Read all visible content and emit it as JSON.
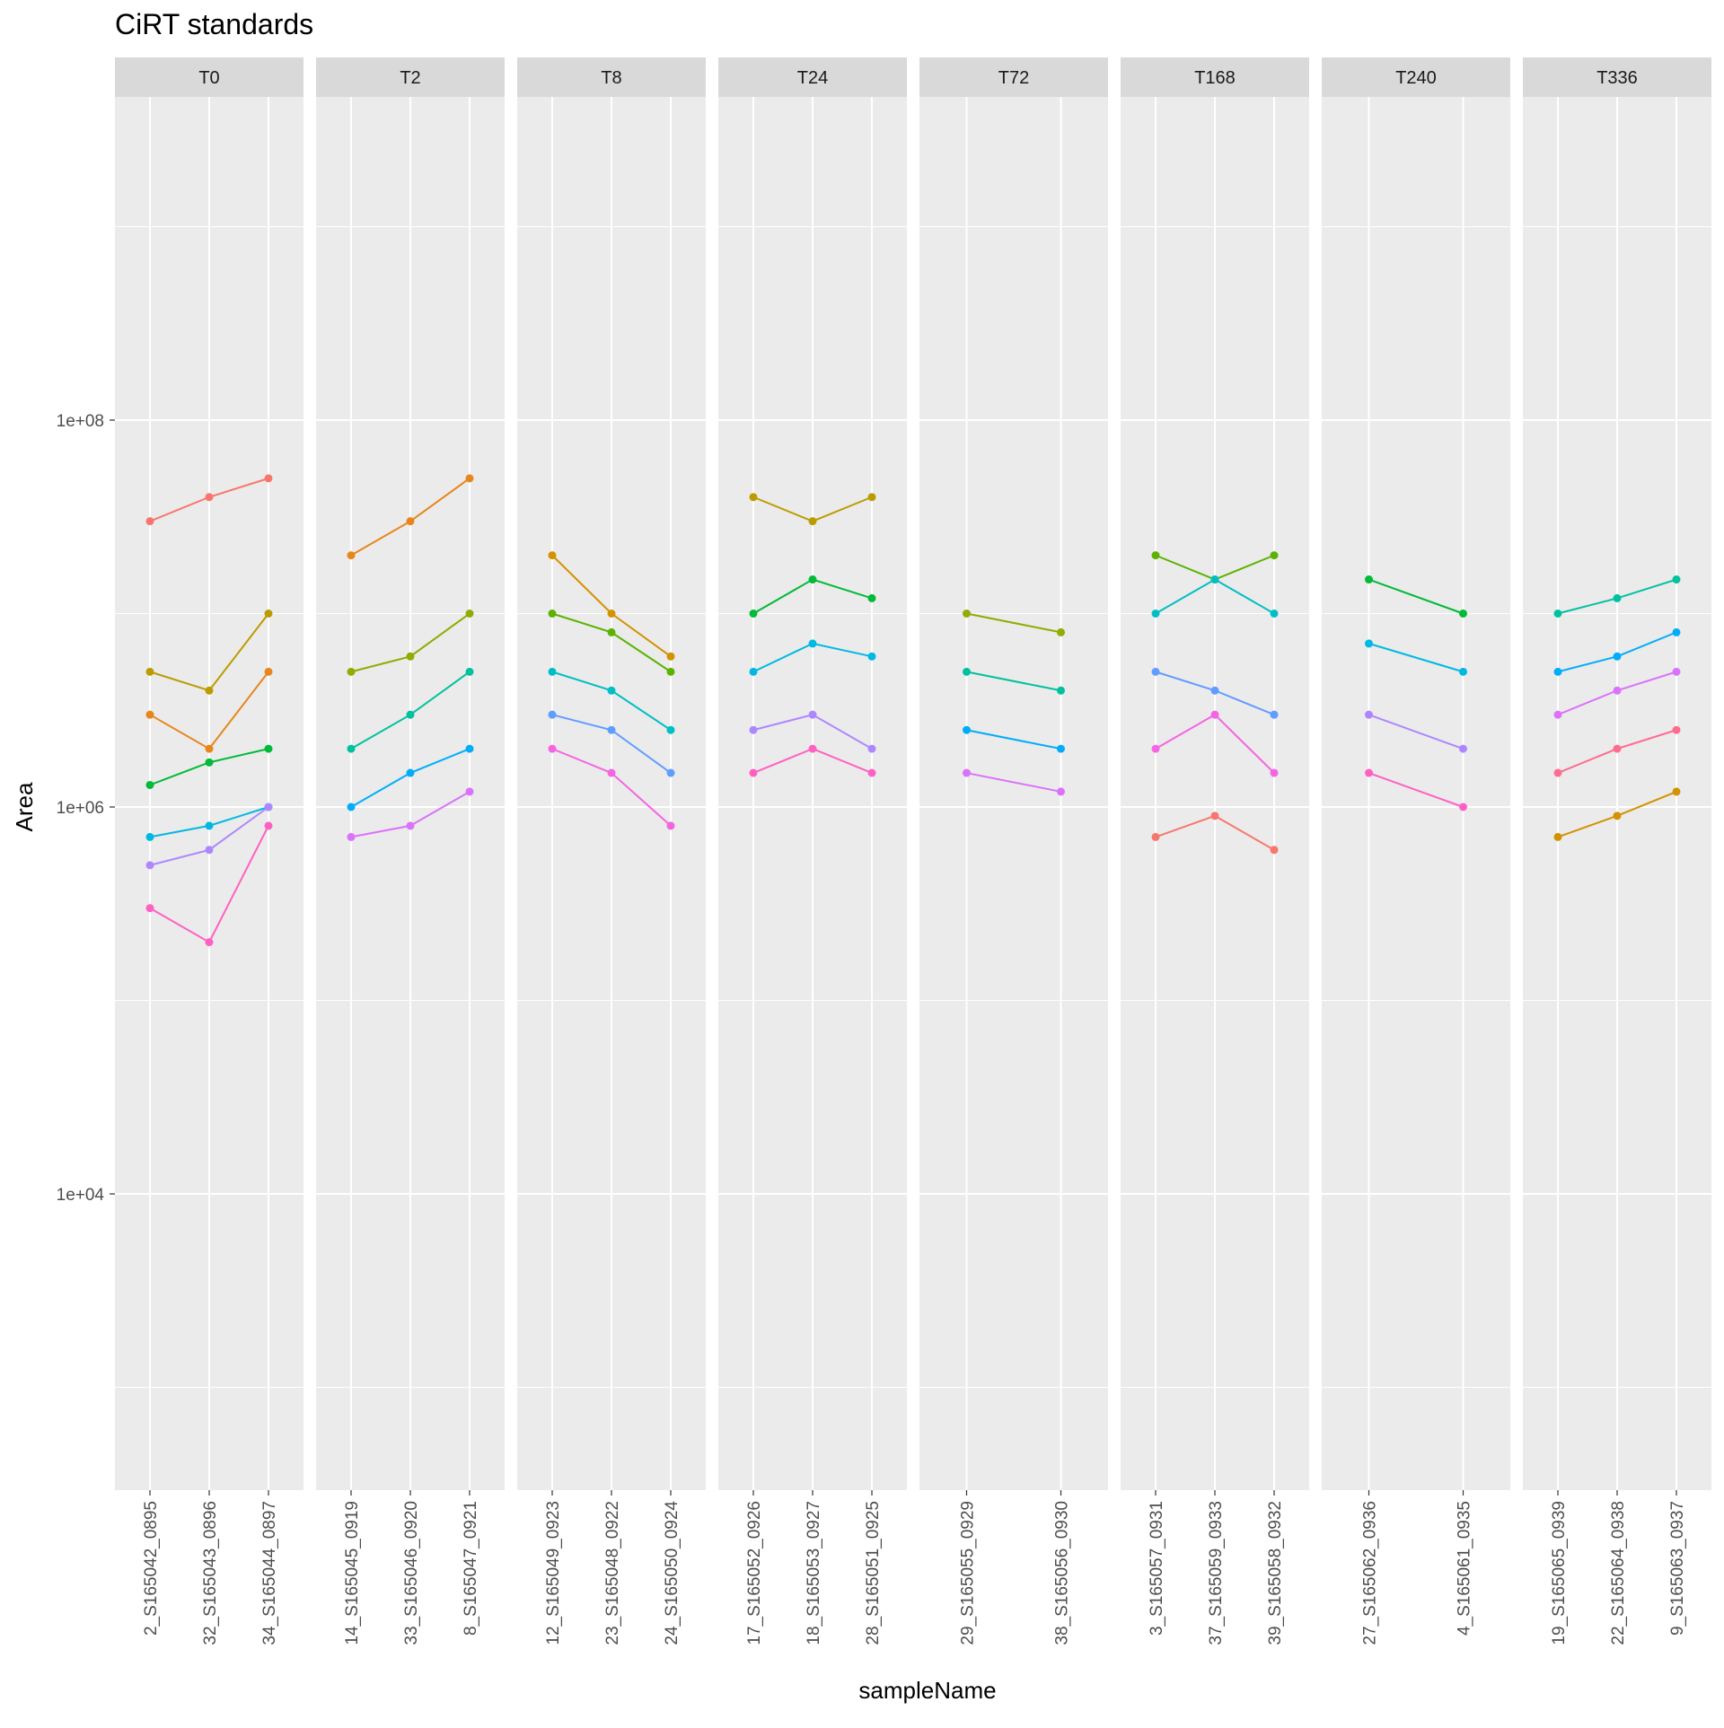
{
  "chart_data": {
    "type": "line",
    "title": "CiRT standards",
    "xlabel": "sampleName",
    "ylabel": "Area",
    "y_scale": "log10",
    "ylim": [
      400,
      30000000000
    ],
    "y_ticks": [
      {
        "value": 10000,
        "label": "1e+04"
      },
      {
        "value": 1000000,
        "label": "1e+06"
      },
      {
        "value": 100000000,
        "label": "1e+08"
      }
    ],
    "grid": true,
    "legend": "none",
    "colors": [
      "#F8766D",
      "#E7861A",
      "#D39200",
      "#BB9C00",
      "#93AA00",
      "#5BB300",
      "#00BA38",
      "#00C19F",
      "#00BFC4",
      "#00B9E3",
      "#00ADFA",
      "#619CFF",
      "#AE87FF",
      "#DB72FB",
      "#F564E3",
      "#FF61C3",
      "#FF6C91"
    ],
    "facets": [
      {
        "label": "T0",
        "samples": [
          "2_S165042_0895",
          "32_S165043_0896",
          "34_S165044_0897"
        ],
        "series": [
          {
            "values": [
              30000000,
              40000000,
              50000000
            ]
          },
          {
            "values": [
              5000000,
              4000000,
              10000000
            ]
          },
          {
            "values": [
              1300000,
              1700000,
              2000000
            ]
          },
          {
            "values": [
              700000,
              800000,
              1000000
            ]
          },
          {
            "values": [
              500000,
              600000,
              1000000
            ]
          },
          {
            "values": [
              300000,
              200000,
              800000
            ]
          },
          {
            "values": [
              3000000,
              2000000,
              5000000
            ]
          }
        ]
      },
      {
        "label": "T2",
        "samples": [
          "14_S165045_0919",
          "33_S165046_0920",
          "8_S165047_0921"
        ],
        "series": [
          {
            "values": [
              20000000,
              30000000,
              50000000
            ]
          },
          {
            "values": [
              5000000,
              6000000,
              10000000
            ]
          },
          {
            "values": [
              2000000,
              3000000,
              5000000
            ]
          },
          {
            "values": [
              1000000,
              1500000,
              2000000
            ]
          },
          {
            "values": [
              700000,
              800000,
              1200000
            ]
          }
        ]
      },
      {
        "label": "T8",
        "samples": [
          "12_S165049_0923",
          "23_S165048_0922",
          "24_S165050_0924"
        ],
        "series": [
          {
            "values": [
              20000000,
              10000000,
              6000000
            ]
          },
          {
            "values": [
              10000000,
              8000000,
              5000000
            ]
          },
          {
            "values": [
              5000000,
              4000000,
              2500000
            ]
          },
          {
            "values": [
              3000000,
              2500000,
              1500000
            ]
          },
          {
            "values": [
              2000000,
              1500000,
              800000
            ]
          }
        ]
      },
      {
        "label": "T24",
        "samples": [
          "17_S165052_0926",
          "18_S165053_0927",
          "28_S165051_0925"
        ],
        "series": [
          {
            "values": [
              40000000,
              30000000,
              40000000
            ]
          },
          {
            "values": [
              10000000,
              15000000,
              12000000
            ]
          },
          {
            "values": [
              5000000,
              7000000,
              6000000
            ]
          },
          {
            "values": [
              2500000,
              3000000,
              2000000
            ]
          },
          {
            "values": [
              1500000,
              2000000,
              1500000
            ]
          }
        ]
      },
      {
        "label": "T72",
        "samples": [
          "29_S165055_0929",
          "38_S165056_0930"
        ],
        "series": [
          {
            "values": [
              10000000,
              8000000
            ]
          },
          {
            "values": [
              5000000,
              4000000
            ]
          },
          {
            "values": [
              2500000,
              2000000
            ]
          },
          {
            "values": [
              1500000,
              1200000
            ]
          }
        ]
      },
      {
        "label": "T168",
        "samples": [
          "3_S165057_0931",
          "37_S165059_0933",
          "39_S165058_0932"
        ],
        "series": [
          {
            "values": [
              20000000,
              15000000,
              20000000
            ]
          },
          {
            "values": [
              10000000,
              15000000,
              10000000
            ]
          },
          {
            "values": [
              5000000,
              4000000,
              3000000
            ]
          },
          {
            "values": [
              2000000,
              3000000,
              1500000
            ]
          },
          {
            "values": [
              700000,
              900000,
              600000
            ]
          }
        ]
      },
      {
        "label": "T240",
        "samples": [
          "27_S165062_0936",
          "4_S165061_0935"
        ],
        "series": [
          {
            "values": [
              15000000,
              10000000
            ]
          },
          {
            "values": [
              7000000,
              5000000
            ]
          },
          {
            "values": [
              3000000,
              2000000
            ]
          },
          {
            "values": [
              1500000,
              1000000
            ]
          }
        ]
      },
      {
        "label": "T336",
        "samples": [
          "19_S165065_0939",
          "22_S165064_0938",
          "9_S165063_0937"
        ],
        "series": [
          {
            "values": [
              10000000,
              12000000,
              15000000
            ]
          },
          {
            "values": [
              5000000,
              6000000,
              8000000
            ]
          },
          {
            "values": [
              3000000,
              4000000,
              5000000
            ]
          },
          {
            "values": [
              1500000,
              2000000,
              2500000
            ]
          },
          {
            "values": [
              700000,
              900000,
              1200000
            ]
          }
        ]
      }
    ]
  }
}
